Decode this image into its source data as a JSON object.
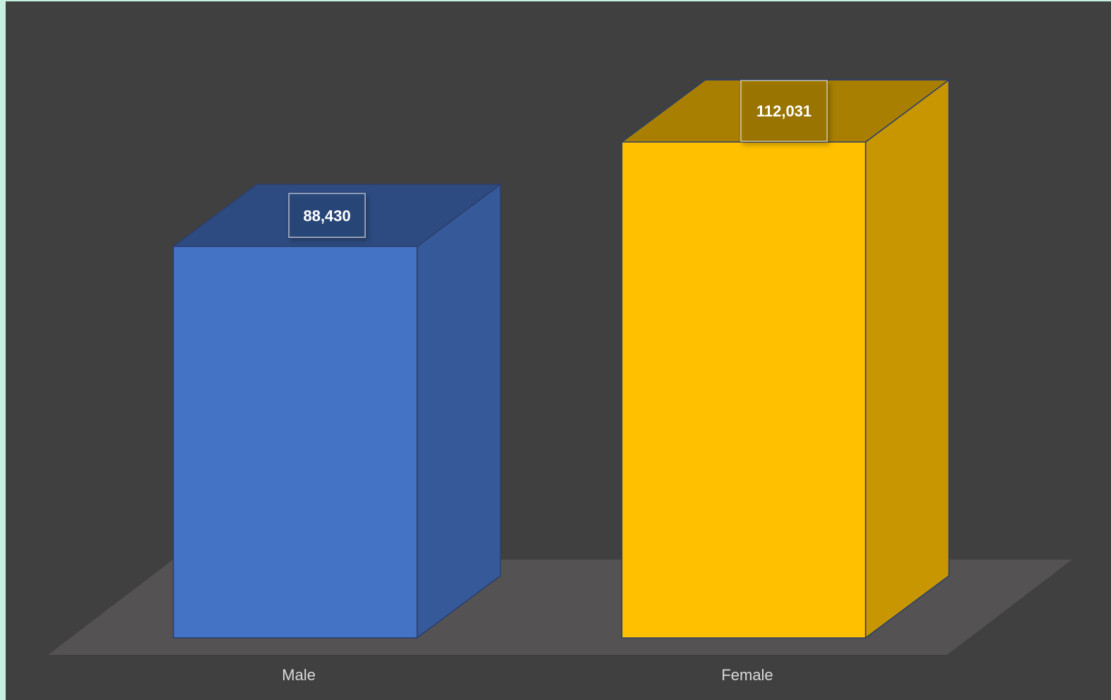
{
  "chart_data": {
    "type": "bar",
    "style": "3d-column",
    "categories": [
      "Male",
      "Female"
    ],
    "values": [
      88430,
      112031
    ],
    "data_labels": [
      "88,430",
      "112,031"
    ],
    "colors": [
      "#4472c4",
      "#ffc000"
    ],
    "background": "#404040",
    "floor_color": "#545252",
    "gridlines": false,
    "legend": "none",
    "show_value_axis": false
  }
}
